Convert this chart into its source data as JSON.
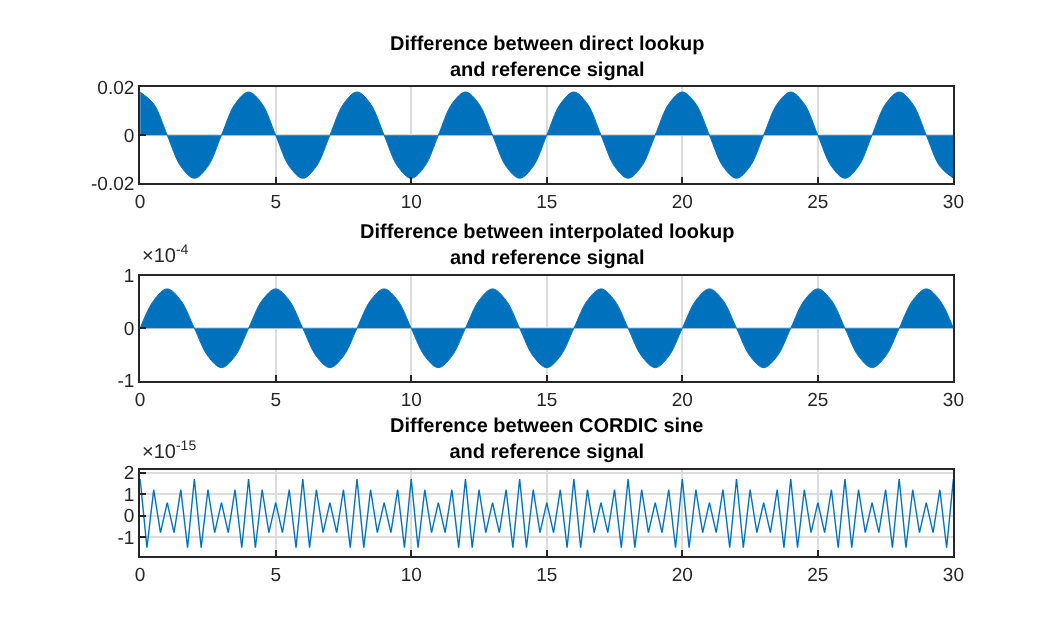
{
  "chart_data": [
    {
      "type": "area",
      "title": "Difference between direct lookup\nand reference signal",
      "color": "#0072bd",
      "xlim": [
        0,
        30
      ],
      "xticks": [
        0,
        5,
        10,
        15,
        20,
        25,
        30
      ],
      "ylim": [
        -0.02,
        0.02
      ],
      "yticks": [
        -0.02,
        0,
        0.02
      ],
      "grid": true,
      "x": [
        0,
        0.5,
        1,
        1.5,
        2,
        2.5,
        3,
        3.5,
        4,
        4.5,
        5,
        5.5,
        6,
        6.5,
        7,
        7.5,
        8,
        8.5,
        9,
        9.5,
        10,
        10.5,
        11,
        11.5,
        12,
        12.5,
        13,
        13.5,
        14,
        14.5,
        15,
        15.5,
        16,
        16.5,
        17,
        17.5,
        18,
        18.5,
        19,
        19.5,
        20,
        20.5,
        21,
        21.5,
        22,
        22.5,
        23,
        23.5,
        24,
        24.5,
        25,
        25.5,
        26,
        26.5,
        27,
        27.5,
        28,
        28.5,
        29,
        29.5,
        30
      ],
      "values": [
        0.018,
        0.013,
        0,
        -0.013,
        -0.018,
        -0.013,
        0,
        0.013,
        0.018,
        0.013,
        0,
        -0.013,
        -0.018,
        -0.013,
        0,
        0.013,
        0.018,
        0.013,
        0,
        -0.013,
        -0.018,
        -0.013,
        0,
        0.013,
        0.018,
        0.013,
        0,
        -0.013,
        -0.018,
        -0.013,
        0,
        0.013,
        0.018,
        0.013,
        0,
        -0.013,
        -0.018,
        -0.013,
        0,
        0.013,
        0.018,
        0.013,
        0,
        -0.013,
        -0.018,
        -0.013,
        0,
        0.013,
        0.018,
        0.013,
        0,
        -0.013,
        -0.018,
        -0.013,
        0,
        0.013,
        0.018,
        0.013,
        0,
        -0.013,
        -0.018
      ]
    },
    {
      "type": "area",
      "title": "Difference between interpolated lookup\nand reference signal",
      "color": "#0072bd",
      "xlim": [
        0,
        30
      ],
      "xticks": [
        0,
        5,
        10,
        15,
        20,
        25,
        30
      ],
      "ylim": [
        -1,
        1
      ],
      "yticks": [
        -1,
        0,
        1
      ],
      "grid": true,
      "annotations": [
        "×10$^{-4}$"
      ],
      "x": [
        0,
        0.5,
        1,
        1.5,
        2,
        2.5,
        3,
        3.5,
        4,
        4.5,
        5,
        5.5,
        6,
        6.5,
        7,
        7.5,
        8,
        8.5,
        9,
        9.5,
        10,
        10.5,
        11,
        11.5,
        12,
        12.5,
        13,
        13.5,
        14,
        14.5,
        15,
        15.5,
        16,
        16.5,
        17,
        17.5,
        18,
        18.5,
        19,
        19.5,
        20,
        20.5,
        21,
        21.5,
        22,
        22.5,
        23,
        23.5,
        24,
        24.5,
        25,
        25.5,
        26,
        26.5,
        27,
        27.5,
        28,
        28.5,
        29,
        29.5,
        30
      ],
      "values": [
        0,
        0.53,
        0.75,
        0.53,
        0,
        -0.53,
        -0.75,
        -0.53,
        0,
        0.53,
        0.75,
        0.53,
        0,
        -0.53,
        -0.75,
        -0.53,
        0,
        0.53,
        0.75,
        0.53,
        0,
        -0.53,
        -0.75,
        -0.53,
        0,
        0.53,
        0.75,
        0.53,
        0,
        -0.53,
        -0.75,
        -0.53,
        0,
        0.53,
        0.75,
        0.53,
        0,
        -0.53,
        -0.75,
        -0.53,
        0,
        0.53,
        0.75,
        0.53,
        0,
        -0.53,
        -0.75,
        -0.53,
        0,
        0.53,
        0.75,
        0.53,
        0,
        -0.53,
        -0.75,
        -0.53,
        0,
        0.53,
        0.75,
        0.53,
        0
      ]
    },
    {
      "type": "line",
      "title": "Difference between CORDIC sine\nand reference signal",
      "color": "#0072bd",
      "xlim": [
        0,
        30
      ],
      "xticks": [
        0,
        5,
        10,
        15,
        20,
        25,
        30
      ],
      "ylim": [
        -1.9,
        2.1
      ],
      "yticks": [
        -1,
        0,
        1,
        2
      ],
      "grid": true,
      "annotations": [
        "×10$^{-15}$"
      ],
      "x": [
        0,
        0.25,
        0.5,
        0.75,
        1,
        1.25,
        1.5,
        1.75,
        2,
        2.25,
        2.5,
        2.75,
        3,
        3.25,
        3.5,
        3.75,
        4,
        4.25,
        4.5,
        4.75,
        5,
        5.25,
        5.5,
        5.75,
        6,
        6.25,
        6.5,
        6.75,
        7,
        7.25,
        7.5,
        7.75,
        8,
        8.25,
        8.5,
        8.75,
        9,
        9.25,
        9.5,
        9.75,
        10,
        10.25,
        10.5,
        10.75,
        11,
        11.25,
        11.5,
        11.75,
        12,
        12.25,
        12.5,
        12.75,
        13,
        13.25,
        13.5,
        13.75,
        14,
        14.25,
        14.5,
        14.75,
        15,
        15.25,
        15.5,
        15.75,
        16,
        16.25,
        16.5,
        16.75,
        17,
        17.25,
        17.5,
        17.75,
        18,
        18.25,
        18.5,
        18.75,
        19,
        19.25,
        19.5,
        19.75,
        20,
        20.25,
        20.5,
        20.75,
        21,
        21.25,
        21.5,
        21.75,
        22,
        22.25,
        22.5,
        22.75,
        23,
        23.25,
        23.5,
        23.75,
        24,
        24.25,
        24.5,
        24.75,
        25,
        25.25,
        25.5,
        25.75,
        26,
        26.25,
        26.5,
        26.75,
        27,
        27.25,
        27.5,
        27.75,
        28,
        28.25,
        28.5,
        28.75,
        29,
        29.25,
        29.5,
        29.75,
        30
      ],
      "values": [
        1.7,
        -1.5,
        1.2,
        -0.8,
        0.6,
        -0.8,
        1.2,
        -1.5,
        1.7,
        -1.5,
        1.2,
        -0.8,
        0.6,
        -0.8,
        1.2,
        -1.5,
        1.7,
        -1.5,
        1.2,
        -0.8,
        0.6,
        -0.8,
        1.2,
        -1.5,
        1.7,
        -1.5,
        1.2,
        -0.8,
        0.6,
        -0.8,
        1.2,
        -1.5,
        1.7,
        -1.5,
        1.2,
        -0.8,
        0.6,
        -0.8,
        1.2,
        -1.5,
        1.7,
        -1.5,
        1.2,
        -0.8,
        0.6,
        -0.8,
        1.2,
        -1.5,
        1.7,
        -1.5,
        1.2,
        -0.8,
        0.6,
        -0.8,
        1.2,
        -1.5,
        1.7,
        -1.5,
        1.2,
        -0.8,
        0.6,
        -0.8,
        1.2,
        -1.5,
        1.7,
        -1.5,
        1.2,
        -0.8,
        0.6,
        -0.8,
        1.2,
        -1.5,
        1.7,
        -1.5,
        1.2,
        -0.8,
        0.6,
        -0.8,
        1.2,
        -1.5,
        1.7,
        -1.5,
        1.2,
        -0.8,
        0.6,
        -0.8,
        1.2,
        -1.5,
        1.7,
        -1.5,
        1.2,
        -0.8,
        0.6,
        -0.8,
        1.2,
        -1.5,
        1.7,
        -1.5,
        1.2,
        -0.8,
        0.6,
        -0.8,
        1.2,
        -1.5,
        1.7,
        -1.5,
        1.2,
        -0.8,
        0.6,
        -0.8,
        1.2,
        -1.5,
        1.7,
        -1.5,
        1.2,
        -0.8,
        0.6,
        -0.8,
        1.2,
        -1.5,
        1.7
      ]
    }
  ]
}
